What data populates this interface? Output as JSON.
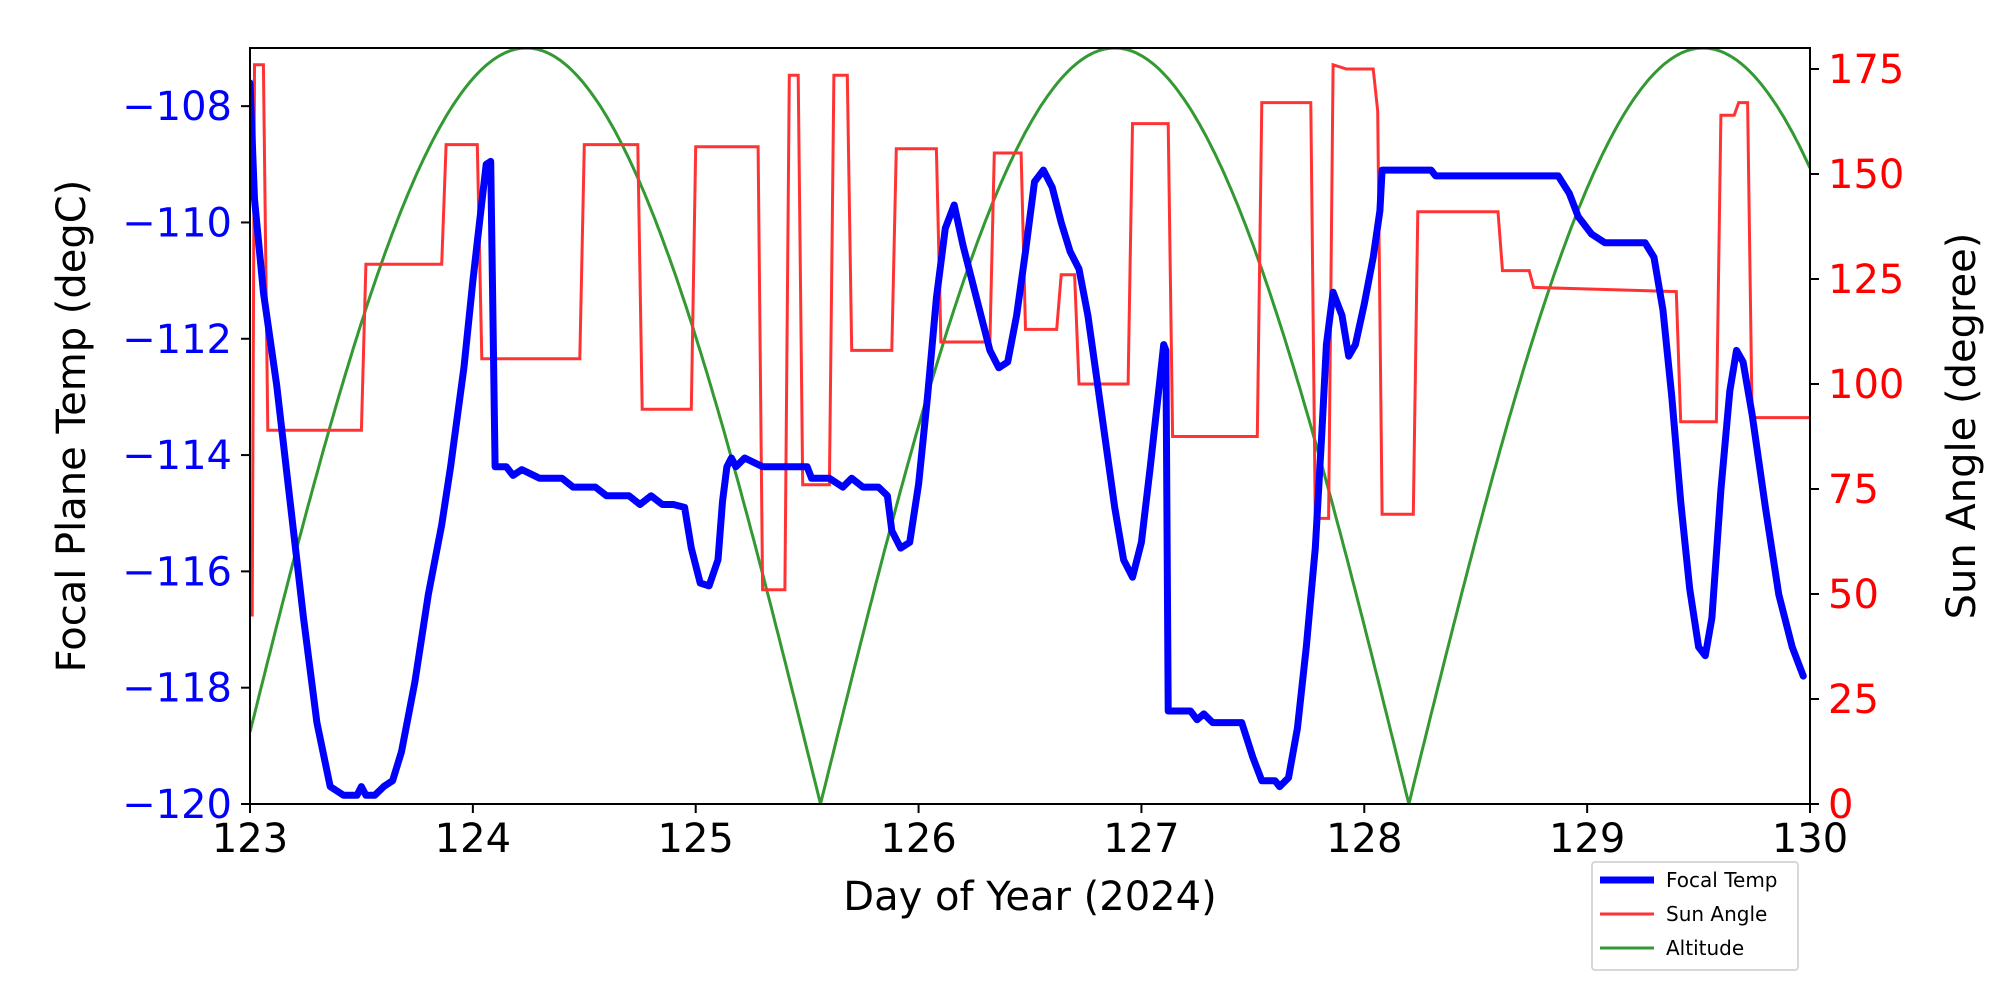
{
  "chart_data": {
    "type": "line",
    "xlabel": "Day of Year (2024)",
    "ylabel_left": "Focal Plane Temp (degC)",
    "ylabel_right": "Sun Angle (degree)",
    "xlim": [
      123,
      130
    ],
    "ylim_left": [
      -120,
      -107
    ],
    "ylim_right": [
      0,
      180
    ],
    "x_ticks": [
      123,
      124,
      125,
      126,
      127,
      128,
      129,
      130
    ],
    "y_left_ticks": [
      -120,
      -118,
      -116,
      -114,
      -112,
      -110,
      -108
    ],
    "y_right_ticks": [
      0,
      25,
      50,
      75,
      100,
      125,
      150,
      175
    ],
    "x_tick_labels": [
      "123",
      "124",
      "125",
      "126",
      "127",
      "128",
      "129",
      "130"
    ],
    "y_left_tick_labels": [
      "−120",
      "−118",
      "−116",
      "−114",
      "−112",
      "−110",
      "−108"
    ],
    "y_right_tick_labels": [
      "0",
      "25",
      "50",
      "75",
      "100",
      "125",
      "150",
      "175"
    ],
    "grid": false,
    "legend_position": "bottom-right, below plot",
    "colors": {
      "left_axis": "#0000ff",
      "right_axis": "#ff0000",
      "focal": "#0000ff",
      "sun": "#ff3333",
      "altitude": "#339933"
    },
    "series": [
      {
        "name": "Focal Temp",
        "axis": "left",
        "points": [
          [
            123.0,
            -107.6
          ],
          [
            123.02,
            -109.6
          ],
          [
            123.06,
            -111.2
          ],
          [
            123.12,
            -112.8
          ],
          [
            123.18,
            -114.8
          ],
          [
            123.24,
            -116.8
          ],
          [
            123.3,
            -118.6
          ],
          [
            123.36,
            -119.7
          ],
          [
            123.42,
            -119.85
          ],
          [
            123.48,
            -119.85
          ],
          [
            123.5,
            -119.7
          ],
          [
            123.52,
            -119.85
          ],
          [
            123.56,
            -119.85
          ],
          [
            123.6,
            -119.7
          ],
          [
            123.64,
            -119.6
          ],
          [
            123.68,
            -119.1
          ],
          [
            123.74,
            -117.9
          ],
          [
            123.8,
            -116.4
          ],
          [
            123.86,
            -115.2
          ],
          [
            123.9,
            -114.2
          ],
          [
            123.96,
            -112.5
          ],
          [
            124.0,
            -111.0
          ],
          [
            124.03,
            -110.0
          ],
          [
            124.06,
            -109.0
          ],
          [
            124.08,
            -108.95
          ],
          [
            124.1,
            -114.2
          ],
          [
            124.15,
            -114.2
          ],
          [
            124.18,
            -114.35
          ],
          [
            124.22,
            -114.25
          ],
          [
            124.3,
            -114.4
          ],
          [
            124.4,
            -114.4
          ],
          [
            124.45,
            -114.55
          ],
          [
            124.55,
            -114.55
          ],
          [
            124.6,
            -114.7
          ],
          [
            124.7,
            -114.7
          ],
          [
            124.75,
            -114.85
          ],
          [
            124.8,
            -114.7
          ],
          [
            124.85,
            -114.85
          ],
          [
            124.9,
            -114.85
          ],
          [
            124.95,
            -114.9
          ],
          [
            124.98,
            -115.6
          ],
          [
            125.02,
            -116.2
          ],
          [
            125.06,
            -116.25
          ],
          [
            125.1,
            -115.8
          ],
          [
            125.12,
            -114.8
          ],
          [
            125.14,
            -114.2
          ],
          [
            125.16,
            -114.05
          ],
          [
            125.18,
            -114.2
          ],
          [
            125.22,
            -114.05
          ],
          [
            125.3,
            -114.2
          ],
          [
            125.5,
            -114.2
          ],
          [
            125.52,
            -114.4
          ],
          [
            125.6,
            -114.4
          ],
          [
            125.66,
            -114.55
          ],
          [
            125.7,
            -114.4
          ],
          [
            125.75,
            -114.55
          ],
          [
            125.82,
            -114.55
          ],
          [
            125.86,
            -114.7
          ],
          [
            125.88,
            -115.3
          ],
          [
            125.92,
            -115.6
          ],
          [
            125.96,
            -115.5
          ],
          [
            126.0,
            -114.5
          ],
          [
            126.04,
            -113.0
          ],
          [
            126.08,
            -111.3
          ],
          [
            126.12,
            -110.1
          ],
          [
            126.16,
            -109.7
          ],
          [
            126.2,
            -110.4
          ],
          [
            126.26,
            -111.3
          ],
          [
            126.32,
            -112.2
          ],
          [
            126.36,
            -112.5
          ],
          [
            126.4,
            -112.4
          ],
          [
            126.44,
            -111.6
          ],
          [
            126.48,
            -110.5
          ],
          [
            126.52,
            -109.3
          ],
          [
            126.56,
            -109.1
          ],
          [
            126.6,
            -109.4
          ],
          [
            126.64,
            -110.0
          ],
          [
            126.68,
            -110.5
          ],
          [
            126.72,
            -110.8
          ],
          [
            126.76,
            -111.6
          ],
          [
            126.8,
            -112.7
          ],
          [
            126.84,
            -113.8
          ],
          [
            126.88,
            -114.9
          ],
          [
            126.92,
            -115.8
          ],
          [
            126.96,
            -116.1
          ],
          [
            127.0,
            -115.5
          ],
          [
            127.04,
            -114.2
          ],
          [
            127.08,
            -112.8
          ],
          [
            127.1,
            -112.1
          ],
          [
            127.11,
            -112.2
          ],
          [
            127.12,
            -118.4
          ],
          [
            127.22,
            -118.4
          ],
          [
            127.25,
            -118.55
          ],
          [
            127.28,
            -118.45
          ],
          [
            127.32,
            -118.6
          ],
          [
            127.45,
            -118.6
          ],
          [
            127.5,
            -119.2
          ],
          [
            127.54,
            -119.6
          ],
          [
            127.6,
            -119.6
          ],
          [
            127.62,
            -119.7
          ],
          [
            127.66,
            -119.55
          ],
          [
            127.7,
            -118.7
          ],
          [
            127.74,
            -117.3
          ],
          [
            127.78,
            -115.6
          ],
          [
            127.81,
            -113.6
          ],
          [
            127.83,
            -112.1
          ],
          [
            127.86,
            -111.2
          ],
          [
            127.9,
            -111.6
          ],
          [
            127.93,
            -112.3
          ],
          [
            127.96,
            -112.1
          ],
          [
            128.0,
            -111.4
          ],
          [
            128.04,
            -110.6
          ],
          [
            128.07,
            -109.8
          ],
          [
            128.08,
            -109.1
          ],
          [
            128.3,
            -109.1
          ],
          [
            128.32,
            -109.2
          ],
          [
            128.4,
            -109.2
          ],
          [
            128.45,
            -109.2
          ],
          [
            128.87,
            -109.2
          ],
          [
            128.92,
            -109.5
          ],
          [
            128.96,
            -109.9
          ],
          [
            129.02,
            -110.2
          ],
          [
            129.08,
            -110.35
          ],
          [
            129.2,
            -110.35
          ],
          [
            129.26,
            -110.35
          ],
          [
            129.3,
            -110.6
          ],
          [
            129.34,
            -111.5
          ],
          [
            129.38,
            -113.0
          ],
          [
            129.42,
            -114.8
          ],
          [
            129.46,
            -116.3
          ],
          [
            129.5,
            -117.3
          ],
          [
            129.53,
            -117.45
          ],
          [
            129.56,
            -116.8
          ],
          [
            129.6,
            -114.6
          ],
          [
            129.64,
            -112.9
          ],
          [
            129.67,
            -112.2
          ],
          [
            129.7,
            -112.4
          ],
          [
            129.74,
            -113.3
          ],
          [
            129.8,
            -114.9
          ],
          [
            129.86,
            -116.4
          ],
          [
            129.92,
            -117.3
          ],
          [
            129.97,
            -117.8
          ]
        ]
      },
      {
        "name": "Sun Angle",
        "axis": "right",
        "points": [
          [
            123.0,
            45.0
          ],
          [
            123.01,
            45.0
          ],
          [
            123.02,
            176.0
          ],
          [
            123.06,
            176.0
          ],
          [
            123.08,
            89.0
          ],
          [
            123.5,
            89.0
          ],
          [
            123.52,
            128.5
          ],
          [
            123.86,
            128.5
          ],
          [
            123.88,
            157.0
          ],
          [
            124.02,
            157.0
          ],
          [
            124.04,
            106.0
          ],
          [
            124.48,
            106.0
          ],
          [
            124.5,
            157.0
          ],
          [
            124.74,
            157.0
          ],
          [
            124.76,
            94.0
          ],
          [
            124.98,
            94.0
          ],
          [
            125.0,
            156.5
          ],
          [
            125.28,
            156.5
          ],
          [
            125.3,
            51.0
          ],
          [
            125.4,
            51.0
          ],
          [
            125.42,
            173.5
          ],
          [
            125.46,
            173.5
          ],
          [
            125.48,
            76.0
          ],
          [
            125.6,
            76.0
          ],
          [
            125.62,
            173.5
          ],
          [
            125.68,
            173.5
          ],
          [
            125.7,
            108.0
          ],
          [
            125.88,
            108.0
          ],
          [
            125.9,
            156.0
          ],
          [
            126.08,
            156.0
          ],
          [
            126.1,
            110.0
          ],
          [
            126.32,
            110.0
          ],
          [
            126.34,
            155.0
          ],
          [
            126.46,
            155.0
          ],
          [
            126.48,
            113.0
          ],
          [
            126.62,
            113.0
          ],
          [
            126.64,
            126.0
          ],
          [
            126.7,
            126.0
          ],
          [
            126.72,
            100.0
          ],
          [
            126.94,
            100.0
          ],
          [
            126.96,
            162.0
          ],
          [
            127.12,
            162.0
          ],
          [
            127.14,
            87.5
          ],
          [
            127.52,
            87.5
          ],
          [
            127.54,
            167.0
          ],
          [
            127.76,
            167.0
          ],
          [
            127.78,
            68.0
          ],
          [
            127.84,
            68.0
          ],
          [
            127.86,
            176.0
          ],
          [
            127.92,
            175.0
          ],
          [
            128.04,
            175.0
          ],
          [
            128.06,
            165.0
          ],
          [
            128.08,
            69.0
          ],
          [
            128.22,
            69.0
          ],
          [
            128.24,
            141.0
          ],
          [
            128.6,
            141.0
          ],
          [
            128.62,
            127.0
          ],
          [
            128.74,
            127.0
          ],
          [
            128.76,
            123.0
          ],
          [
            129.4,
            122.0
          ],
          [
            129.42,
            91.0
          ],
          [
            129.58,
            91.0
          ],
          [
            129.6,
            164.0
          ],
          [
            129.66,
            164.0
          ],
          [
            129.68,
            167.0
          ],
          [
            129.72,
            167.0
          ],
          [
            129.74,
            92.0
          ],
          [
            130.0,
            92.0
          ]
        ]
      },
      {
        "name": "Altitude",
        "axis": "right",
        "peaks": [
          124.23,
          126.88,
          129.52
        ],
        "zeros": [
          125.56,
          128.2
        ],
        "peak_value": 180
      }
    ]
  }
}
